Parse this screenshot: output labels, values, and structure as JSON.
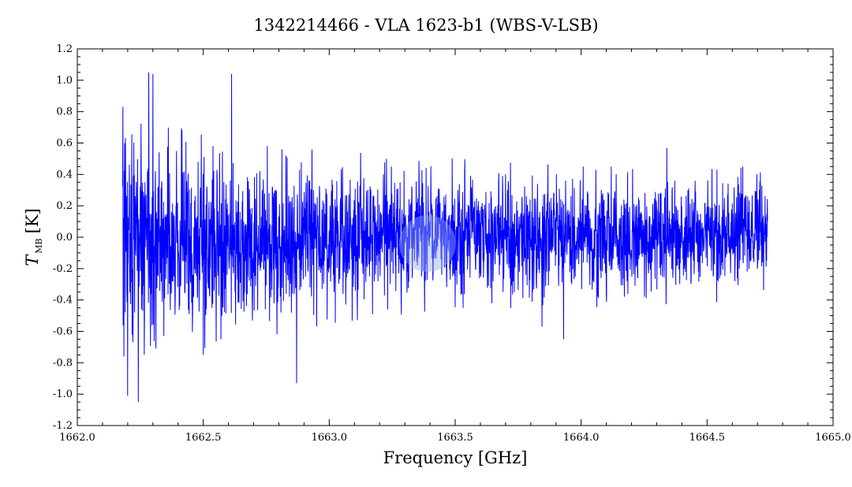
{
  "chart_data": {
    "type": "line",
    "title": "1342214466 - VLA 1623-b1 (WBS-V-LSB)",
    "xlabel": "Frequency [GHz]",
    "ylabel": {
      "symbol": "T",
      "subscript": "MB",
      "unit": "[K]"
    },
    "xlim": [
      1662.0,
      1665.0
    ],
    "ylim": [
      -1.2,
      1.2
    ],
    "x_ticks": [
      "1662.0",
      "1662.5",
      "1663.0",
      "1663.5",
      "1664.0",
      "1664.5",
      "1665.0"
    ],
    "y_ticks": [
      "-1.2",
      "-1.0",
      "-0.8",
      "-0.6",
      "-0.4",
      "-0.2",
      "0.0",
      "0.2",
      "0.4",
      "0.6",
      "0.8",
      "1.0",
      "1.2"
    ],
    "grid": false,
    "series": [
      {
        "color": "#0000ff",
        "x_range": [
          1662.18,
          1664.74
        ],
        "noise_envelope": [
          {
            "x": 1662.18,
            "min": -1.05,
            "max": 1.05
          },
          {
            "x": 1662.4,
            "min": -0.8,
            "max": 0.7
          },
          {
            "x": 1662.6,
            "min": -0.7,
            "max": 0.6
          },
          {
            "x": 1663.0,
            "min": -0.55,
            "max": 0.55
          },
          {
            "x": 1663.5,
            "min": -0.45,
            "max": 0.5
          },
          {
            "x": 1664.0,
            "min": -0.45,
            "max": 0.45
          },
          {
            "x": 1664.74,
            "min": -0.4,
            "max": 0.45
          }
        ],
        "notable_points": [
          {
            "x": 1662.2,
            "y": -1.01
          },
          {
            "x": 1662.242,
            "y": -1.05
          },
          {
            "x": 1662.283,
            "y": 1.05
          },
          {
            "x": 1662.3,
            "y": 1.04
          },
          {
            "x": 1662.612,
            "y": 1.04
          },
          {
            "x": 1662.87,
            "y": -0.93
          },
          {
            "x": 1663.845,
            "y": -0.57
          },
          {
            "x": 1663.93,
            "y": -0.65
          },
          {
            "x": 1664.34,
            "y": 0.57
          }
        ]
      }
    ]
  },
  "annotations": {
    "highlight_marker_color": "#9ab0ee",
    "highlight_marker_position": {
      "x": 1663.39,
      "y": -0.04
    }
  }
}
